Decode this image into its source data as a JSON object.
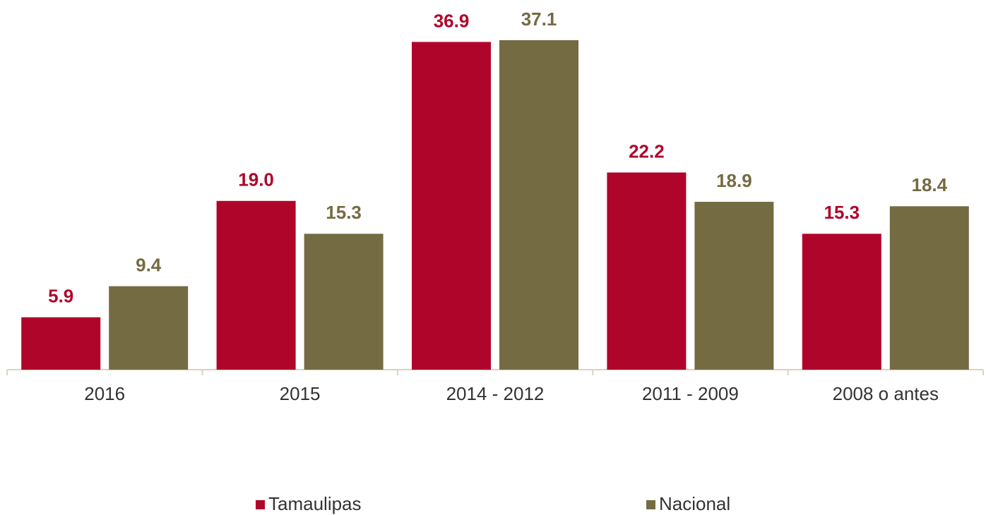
{
  "chart_data": {
    "type": "bar",
    "categories": [
      "2016",
      "2015",
      "2014 - 2012",
      "2011 - 2009",
      "2008 o antes"
    ],
    "series": [
      {
        "name": "Tamaulipas",
        "color": "#b0052b",
        "values": [
          5.9,
          19.0,
          36.9,
          22.2,
          15.3
        ],
        "value_labels": [
          "5.9",
          "19.0",
          "36.9",
          "22.2",
          "15.3"
        ]
      },
      {
        "name": "Nacional",
        "color": "#756b42",
        "values": [
          9.4,
          15.3,
          37.1,
          18.9,
          18.4
        ],
        "value_labels": [
          "9.4",
          "15.3",
          "37.1",
          "18.9",
          "18.4"
        ]
      }
    ],
    "ylim": [
      0,
      40
    ],
    "grid": false,
    "legend": "bottom"
  }
}
